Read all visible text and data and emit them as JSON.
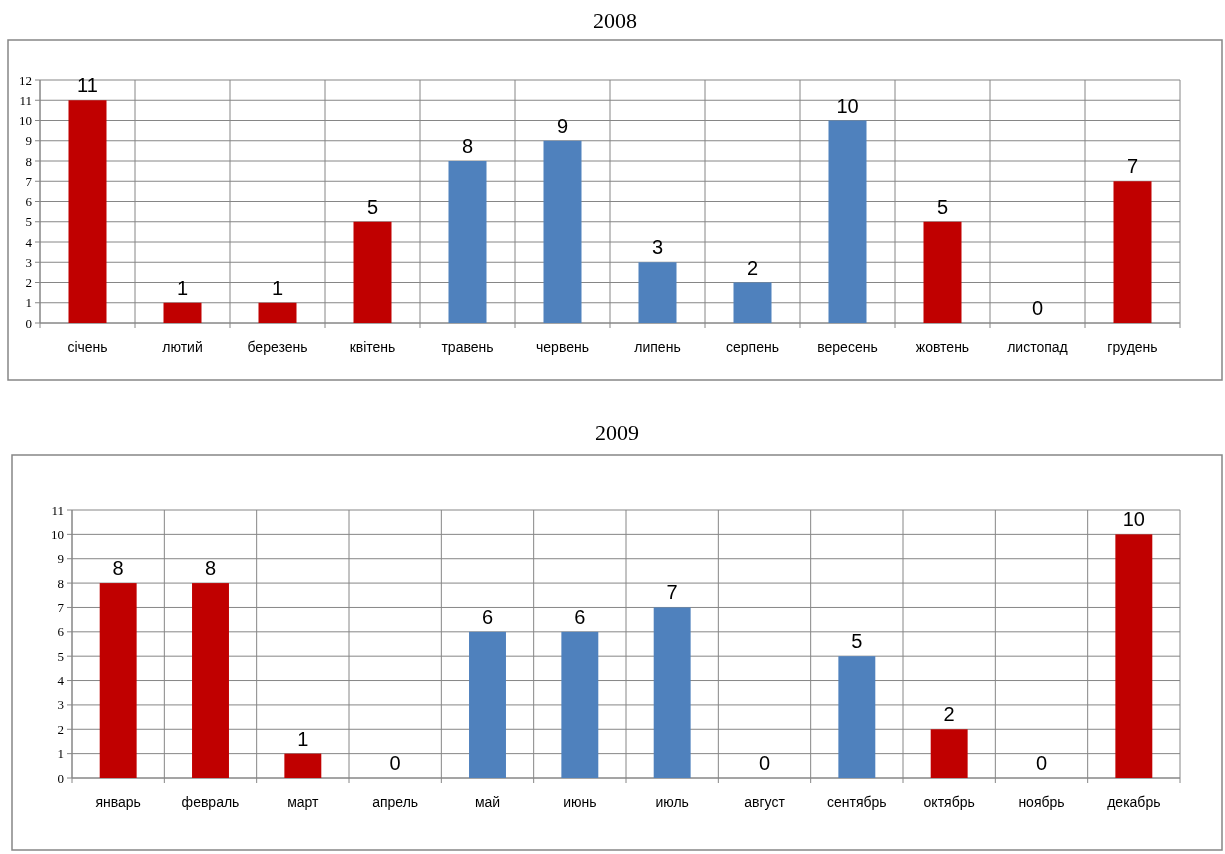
{
  "chart_data": [
    {
      "type": "bar",
      "title": "2008",
      "categories": [
        "січень",
        "лютий",
        "березень",
        "квітень",
        "травень",
        "червень",
        "липень",
        "серпень",
        "вересень",
        "жовтень",
        "листопад",
        "грудень"
      ],
      "values": [
        11,
        1,
        1,
        5,
        8,
        9,
        3,
        2,
        10,
        5,
        0,
        7
      ],
      "colors": [
        "#c00000",
        "#c00000",
        "#c00000",
        "#c00000",
        "#4f81bd",
        "#4f81bd",
        "#4f81bd",
        "#4f81bd",
        "#4f81bd",
        "#c00000",
        "#c00000",
        "#c00000"
      ],
      "ylim": [
        0,
        12
      ],
      "yticks": [
        0,
        1,
        2,
        3,
        4,
        5,
        6,
        7,
        8,
        9,
        10,
        11,
        12
      ],
      "grid": true,
      "data_labels": true
    },
    {
      "type": "bar",
      "title": "2009",
      "categories": [
        "январь",
        "февраль",
        "март",
        "апрель",
        "май",
        "июнь",
        "июль",
        "август",
        "сентябрь",
        "октябрь",
        "ноябрь",
        "декабрь"
      ],
      "values": [
        8,
        8,
        1,
        0,
        6,
        6,
        7,
        0,
        5,
        2,
        0,
        10
      ],
      "colors": [
        "#c00000",
        "#c00000",
        "#c00000",
        "#c00000",
        "#4f81bd",
        "#4f81bd",
        "#4f81bd",
        "#4f81bd",
        "#4f81bd",
        "#c00000",
        "#c00000",
        "#c00000"
      ],
      "ylim": [
        0,
        11
      ],
      "yticks": [
        0,
        1,
        2,
        3,
        4,
        5,
        6,
        7,
        8,
        9,
        10,
        11
      ],
      "grid": true,
      "data_labels": true
    }
  ]
}
